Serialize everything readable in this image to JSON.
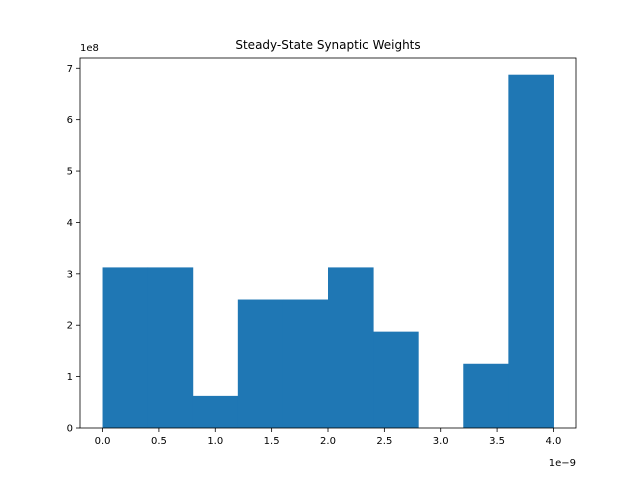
{
  "chart_data": {
    "type": "bar",
    "title": "Steady-State Synaptic Weights",
    "xlabel": "",
    "ylabel": "",
    "x_offset_label": "1e−9",
    "y_offset_label": "1e8",
    "xlim": [
      -0.2,
      4.2
    ],
    "ylim": [
      0,
      7.2
    ],
    "x_ticks": [
      0.0,
      0.5,
      1.0,
      1.5,
      2.0,
      2.5,
      3.0,
      3.5,
      4.0
    ],
    "x_tick_labels": [
      "0.0",
      "0.5",
      "1.0",
      "1.5",
      "2.0",
      "2.5",
      "3.0",
      "3.5",
      "4.0"
    ],
    "y_ticks": [
      0,
      1,
      2,
      3,
      4,
      5,
      6,
      7
    ],
    "y_tick_labels": [
      "0",
      "1",
      "2",
      "3",
      "4",
      "5",
      "6",
      "7"
    ],
    "bin_edges": [
      0.0,
      0.4,
      0.8,
      1.2,
      1.6,
      2.0,
      2.4,
      2.8,
      3.2,
      3.6,
      4.0
    ],
    "values": [
      3.125,
      3.125,
      0.625,
      2.5,
      2.5,
      3.125,
      1.875,
      0.0,
      1.25,
      6.875
    ],
    "bar_color": "#1f77b4",
    "grid": false,
    "legend": "none"
  }
}
